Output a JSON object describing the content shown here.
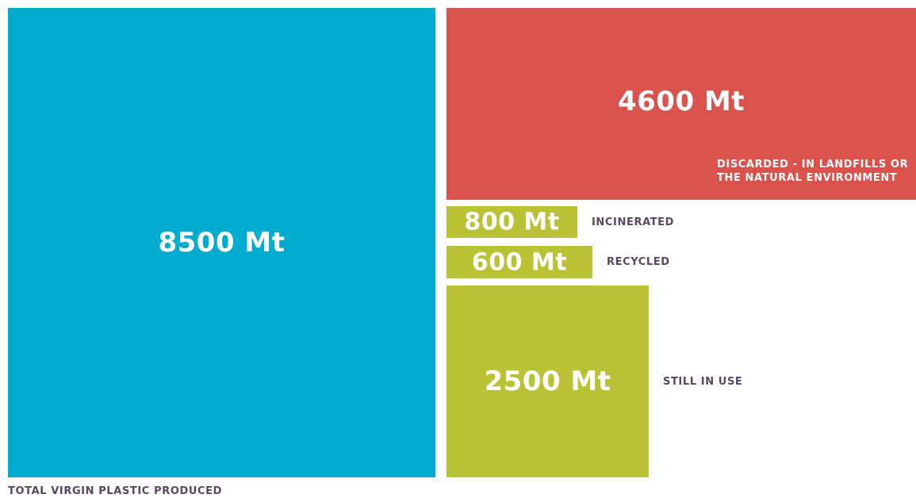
{
  "chart_data": {
    "type": "treemap",
    "unit": "Mt",
    "colors": {
      "produced": "#00abd0",
      "discarded": "#d9534c",
      "other": "#b8c234",
      "label": "#5a4663"
    },
    "items": [
      {
        "id": "produced",
        "value": 8500,
        "value_label": "8500 Mt",
        "label": "TOTAL VIRGIN PLASTIC PRODUCED"
      },
      {
        "id": "discarded",
        "value": 4600,
        "value_label": "4600 Mt",
        "label": "DISCARDED - IN LANDFILLS OR THE NATURAL ENVIRONMENT"
      },
      {
        "id": "incinerated",
        "value": 800,
        "value_label": "800 Mt",
        "label": "INCINERATED"
      },
      {
        "id": "recycled",
        "value": 600,
        "value_label": "600 Mt",
        "label": "RECYCLED"
      },
      {
        "id": "in_use",
        "value": 2500,
        "value_label": "2500 Mt",
        "label": "STILL IN USE"
      }
    ]
  }
}
